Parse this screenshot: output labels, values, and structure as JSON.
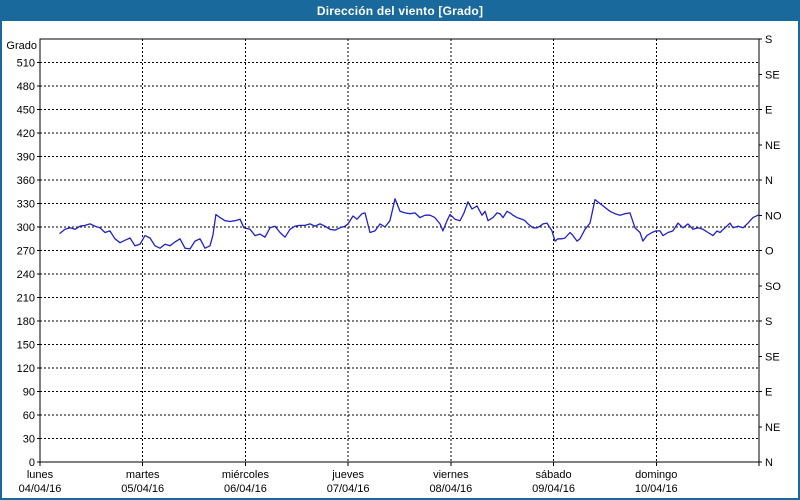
{
  "window": {
    "title": "Dirección del viento [Grado]"
  },
  "colors": {
    "frame": "#19699C",
    "titlebar_bg": "#19699C",
    "titlebar_text": "#FFFFFF",
    "plot_background": "#FFFFFF",
    "grid": "#000000",
    "line": "#2222C4"
  },
  "chart_data": {
    "type": "line",
    "title": "Dirección del viento [Grado]",
    "xlabel": "",
    "ylabel": "Grado",
    "grid": true,
    "legend": "none",
    "y_left": {
      "label": "Grado",
      "min": 0,
      "max": 540,
      "label_step": 30,
      "labels": [
        "0",
        "30",
        "60",
        "90",
        "120",
        "150",
        "180",
        "210",
        "240",
        "270",
        "300",
        "330",
        "360",
        "390",
        "420",
        "450",
        "480",
        "510"
      ]
    },
    "y_right": {
      "tick_step": 45,
      "labels_top_to_bottom": [
        "S",
        "SE",
        "E",
        "NE",
        "N",
        "NO",
        "O",
        "SO",
        "S",
        "SE",
        "E",
        "NE",
        "N"
      ]
    },
    "x": {
      "span_days": 7,
      "days": [
        {
          "name": "lunes",
          "date": "04/04/16"
        },
        {
          "name": "martes",
          "date": "05/04/16"
        },
        {
          "name": "miércoles",
          "date": "06/04/16"
        },
        {
          "name": "jueves",
          "date": "07/04/16"
        },
        {
          "name": "viernes",
          "date": "08/04/16"
        },
        {
          "name": "sábado",
          "date": "09/04/16"
        },
        {
          "name": "domingo",
          "date": "10/04/16"
        }
      ]
    },
    "series": [
      {
        "name": "Dirección del viento",
        "color": "#2222C4",
        "points": [
          [
            0.195,
            292
          ],
          [
            0.243,
            297
          ],
          [
            0.292,
            299
          ],
          [
            0.341,
            297
          ],
          [
            0.389,
            301
          ],
          [
            0.438,
            302
          ],
          [
            0.487,
            304
          ],
          [
            0.535,
            301
          ],
          [
            0.584,
            299
          ],
          [
            0.633,
            293
          ],
          [
            0.681,
            295
          ],
          [
            0.73,
            285
          ],
          [
            0.779,
            280
          ],
          [
            0.827,
            283
          ],
          [
            0.876,
            286
          ],
          [
            0.925,
            276
          ],
          [
            0.974,
            278
          ],
          [
            1.022,
            289
          ],
          [
            1.071,
            286
          ],
          [
            1.12,
            276
          ],
          [
            1.168,
            273
          ],
          [
            1.217,
            278
          ],
          [
            1.266,
            276
          ],
          [
            1.314,
            281
          ],
          [
            1.363,
            285
          ],
          [
            1.412,
            273
          ],
          [
            1.46,
            272
          ],
          [
            1.509,
            282
          ],
          [
            1.558,
            285
          ],
          [
            1.606,
            273
          ],
          [
            1.655,
            276
          ],
          [
            1.684,
            290
          ],
          [
            1.713,
            316
          ],
          [
            1.752,
            312
          ],
          [
            1.801,
            308
          ],
          [
            1.85,
            307
          ],
          [
            1.898,
            308
          ],
          [
            1.947,
            310
          ],
          [
            1.986,
            299
          ],
          [
            2.045,
            297
          ],
          [
            2.093,
            289
          ],
          [
            2.142,
            291
          ],
          [
            2.191,
            287
          ],
          [
            2.239,
            299
          ],
          [
            2.288,
            301
          ],
          [
            2.337,
            293
          ],
          [
            2.385,
            287
          ],
          [
            2.434,
            297
          ],
          [
            2.483,
            301
          ],
          [
            2.531,
            302
          ],
          [
            2.58,
            302
          ],
          [
            2.629,
            304
          ],
          [
            2.677,
            301
          ],
          [
            2.726,
            304
          ],
          [
            2.775,
            301
          ],
          [
            2.823,
            297
          ],
          [
            2.872,
            296
          ],
          [
            2.921,
            299
          ],
          [
            2.969,
            301
          ],
          [
            2.999,
            304
          ],
          [
            3.047,
            314
          ],
          [
            3.086,
            310
          ],
          [
            3.135,
            317
          ],
          [
            3.164,
            318
          ],
          [
            3.213,
            293
          ],
          [
            3.261,
            295
          ],
          [
            3.31,
            304
          ],
          [
            3.359,
            300
          ],
          [
            3.407,
            308
          ],
          [
            3.456,
            336
          ],
          [
            3.505,
            320
          ],
          [
            3.553,
            318
          ],
          [
            3.602,
            317
          ],
          [
            3.651,
            318
          ],
          [
            3.699,
            312
          ],
          [
            3.748,
            315
          ],
          [
            3.797,
            315
          ],
          [
            3.845,
            312
          ],
          [
            3.894,
            304
          ],
          [
            3.923,
            295
          ],
          [
            3.962,
            308
          ],
          [
            3.992,
            316
          ],
          [
            4.04,
            310
          ],
          [
            4.089,
            308
          ],
          [
            4.128,
            318
          ],
          [
            4.167,
            332
          ],
          [
            4.206,
            323
          ],
          [
            4.255,
            327
          ],
          [
            4.303,
            315
          ],
          [
            4.333,
            320
          ],
          [
            4.362,
            308
          ],
          [
            4.41,
            312
          ],
          [
            4.449,
            318
          ],
          [
            4.478,
            317
          ],
          [
            4.508,
            312
          ],
          [
            4.547,
            320
          ],
          [
            4.576,
            318
          ],
          [
            4.605,
            315
          ],
          [
            4.644,
            312
          ],
          [
            4.693,
            310
          ],
          [
            4.722,
            308
          ],
          [
            4.751,
            304
          ],
          [
            4.8,
            299
          ],
          [
            4.839,
            299
          ],
          [
            4.868,
            301
          ],
          [
            4.897,
            304
          ],
          [
            4.936,
            305
          ],
          [
            4.965,
            299
          ],
          [
            4.985,
            295
          ],
          [
            5.014,
            282
          ],
          [
            5.043,
            285
          ],
          [
            5.082,
            285
          ],
          [
            5.111,
            286
          ],
          [
            5.16,
            293
          ],
          [
            5.189,
            289
          ],
          [
            5.228,
            282
          ],
          [
            5.257,
            285
          ],
          [
            5.306,
            297
          ],
          [
            5.355,
            305
          ],
          [
            5.403,
            335
          ],
          [
            5.452,
            330
          ],
          [
            5.481,
            327
          ],
          [
            5.549,
            320
          ],
          [
            5.598,
            317
          ],
          [
            5.647,
            315
          ],
          [
            5.695,
            317
          ],
          [
            5.744,
            318
          ],
          [
            5.793,
            299
          ],
          [
            5.841,
            293
          ],
          [
            5.87,
            282
          ],
          [
            5.909,
            289
          ],
          [
            5.958,
            293
          ],
          [
            5.997,
            295
          ],
          [
            6.036,
            295
          ],
          [
            6.065,
            289
          ],
          [
            6.114,
            293
          ],
          [
            6.162,
            295
          ],
          [
            6.211,
            305
          ],
          [
            6.26,
            299
          ],
          [
            6.309,
            304
          ],
          [
            6.357,
            297
          ],
          [
            6.406,
            299
          ],
          [
            6.455,
            297
          ],
          [
            6.503,
            293
          ],
          [
            6.552,
            289
          ],
          [
            6.591,
            295
          ],
          [
            6.62,
            293
          ],
          [
            6.669,
            299
          ],
          [
            6.718,
            305
          ],
          [
            6.747,
            299
          ],
          [
            6.796,
            301
          ],
          [
            6.844,
            299
          ],
          [
            6.893,
            305
          ],
          [
            6.942,
            312
          ],
          [
            6.99,
            315
          ]
        ]
      }
    ]
  }
}
